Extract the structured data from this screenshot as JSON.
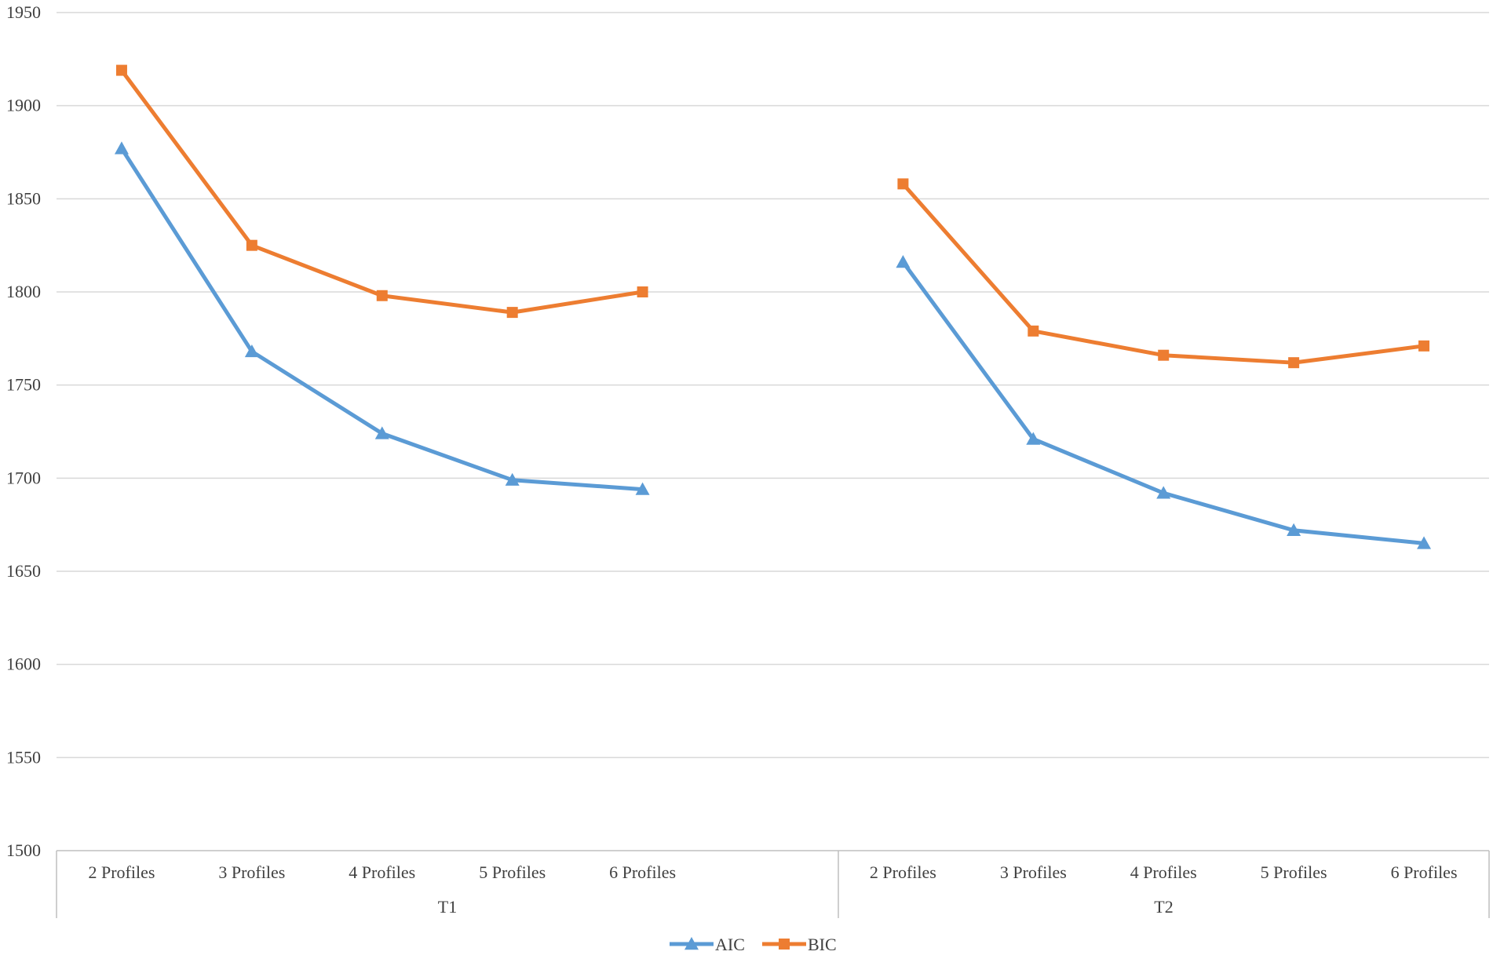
{
  "chart_data": {
    "type": "line",
    "title": "",
    "xlabel": "",
    "ylabel": "",
    "ylim": [
      1500,
      1950
    ],
    "y_ticks": [
      1500,
      1550,
      1600,
      1650,
      1700,
      1750,
      1800,
      1850,
      1900,
      1950
    ],
    "grid": true,
    "legend_position": "bottom",
    "groups": [
      {
        "name": "T1",
        "categories": [
          "2 Profiles",
          "3 Profiles",
          "4 Profiles",
          "5 Profiles",
          "6 Profiles"
        ]
      },
      {
        "name": "T2",
        "categories": [
          "2 Profiles",
          "3 Profiles",
          "4 Profiles",
          "5 Profiles",
          "6 Profiles"
        ]
      }
    ],
    "series": [
      {
        "name": "AIC",
        "color": "#5B9BD5",
        "marker": "triangle",
        "values_by_group": [
          [
            1877,
            1768,
            1724,
            1699,
            1694
          ],
          [
            1816,
            1721,
            1692,
            1672,
            1665
          ]
        ]
      },
      {
        "name": "BIC",
        "color": "#ED7D31",
        "marker": "square",
        "values_by_group": [
          [
            1919,
            1825,
            1798,
            1789,
            1800
          ],
          [
            1858,
            1779,
            1766,
            1762,
            1771
          ]
        ]
      }
    ]
  }
}
